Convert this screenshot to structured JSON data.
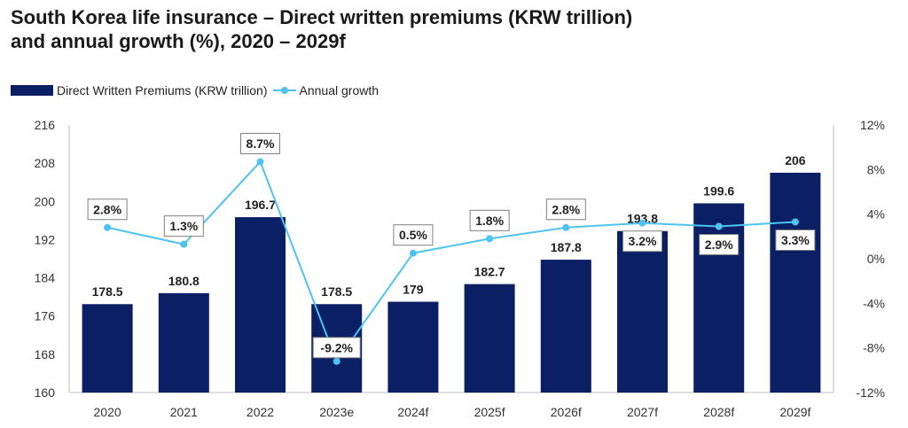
{
  "chart_data": {
    "type": "bar+line",
    "title_line1": "South Korea life insurance – Direct written premiums (KRW trillion)",
    "title_line2": "and annual growth (%), 2020 – 2029f",
    "categories": [
      "2020",
      "2021",
      "2022",
      "2023e",
      "2024f",
      "2025f",
      "2026f",
      "2027f",
      "2028f",
      "2029f"
    ],
    "series": [
      {
        "name": "Direct Written Premiums (KRW trillion)",
        "type": "bar",
        "axis": "left",
        "values": [
          178.5,
          180.8,
          196.7,
          178.5,
          179,
          182.7,
          187.8,
          193.8,
          199.6,
          206
        ],
        "labels": [
          "178.5",
          "180.8",
          "196.7",
          "178.5",
          "179",
          "182.7",
          "187.8",
          "193.8",
          "199.6",
          "206"
        ],
        "color": "#0b1f65"
      },
      {
        "name": "Annual growth",
        "type": "line",
        "axis": "right",
        "values": [
          2.8,
          1.3,
          8.7,
          -9.2,
          0.5,
          1.8,
          2.8,
          3.2,
          2.9,
          3.3
        ],
        "labels": [
          "2.8%",
          "1.3%",
          "8.7%",
          "-9.2%",
          "0.5%",
          "1.8%",
          "2.8%",
          "3.2%",
          "2.9%",
          "3.3%"
        ],
        "color": "#4fc3f0"
      }
    ],
    "y_left": {
      "range": [
        160,
        216
      ],
      "ticks": [
        160,
        168,
        176,
        184,
        192,
        200,
        208,
        216
      ],
      "tick_labels": [
        "160",
        "168",
        "176",
        "184",
        "192",
        "200",
        "208",
        "216"
      ]
    },
    "y_right": {
      "range": [
        -12,
        12
      ],
      "ticks": [
        -12,
        -8,
        -4,
        0,
        4,
        8,
        12
      ],
      "tick_labels": [
        "-12%",
        "-8%",
        "-4%",
        "0%",
        "4%",
        "8%",
        "12%"
      ]
    },
    "grid": false,
    "legend_position": "top-left"
  }
}
